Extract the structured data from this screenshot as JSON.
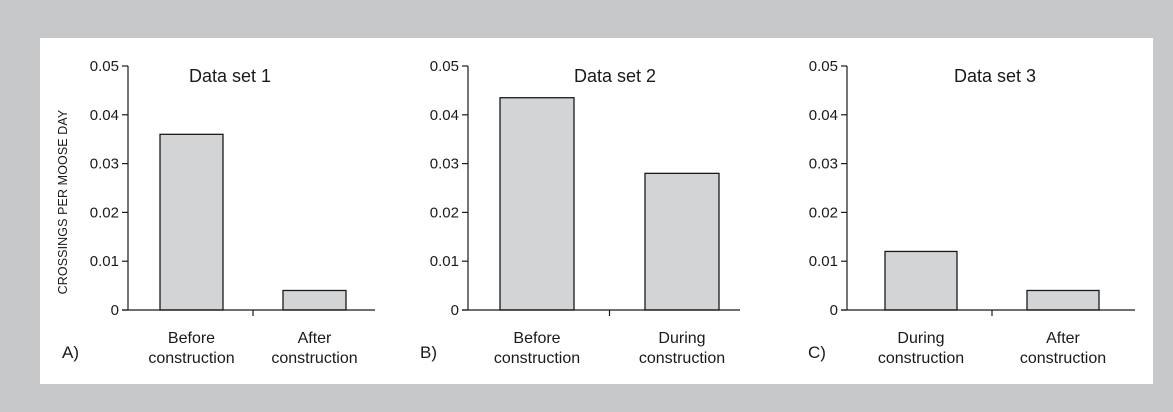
{
  "chart_data": [
    {
      "type": "bar",
      "panel": "A)",
      "title": "Data set 1",
      "ylabel": "CROSSINGS PER MOOSE DAY",
      "ylim": [
        0,
        0.05
      ],
      "yticks": [
        "0",
        "0.01",
        "0.02",
        "0.03",
        "0.04",
        "0.05"
      ],
      "categories": [
        [
          "Before",
          "construction"
        ],
        [
          "After",
          "construction"
        ]
      ],
      "values": [
        0.036,
        0.004
      ]
    },
    {
      "type": "bar",
      "panel": "B)",
      "title": "Data set 2",
      "ylim": [
        0,
        0.05
      ],
      "yticks": [
        "0",
        "0.01",
        "0.02",
        "0.03",
        "0.04",
        "0.05"
      ],
      "categories": [
        [
          "Before",
          "construction"
        ],
        [
          "During",
          "construction"
        ]
      ],
      "values": [
        0.0435,
        0.028
      ]
    },
    {
      "type": "bar",
      "panel": "C)",
      "title": "Data set 3",
      "ylim": [
        0,
        0.05
      ],
      "yticks": [
        "0",
        "0.01",
        "0.02",
        "0.03",
        "0.04",
        "0.05"
      ],
      "categories": [
        [
          "During",
          "construction"
        ],
        [
          "After",
          "construction"
        ]
      ],
      "values": [
        0.012,
        0.004
      ]
    }
  ],
  "colors": {
    "background": "#c7c8ca",
    "panel": "#ffffff",
    "bar_fill": "#d3d4d6",
    "bar_stroke": "#1a1a1a"
  }
}
